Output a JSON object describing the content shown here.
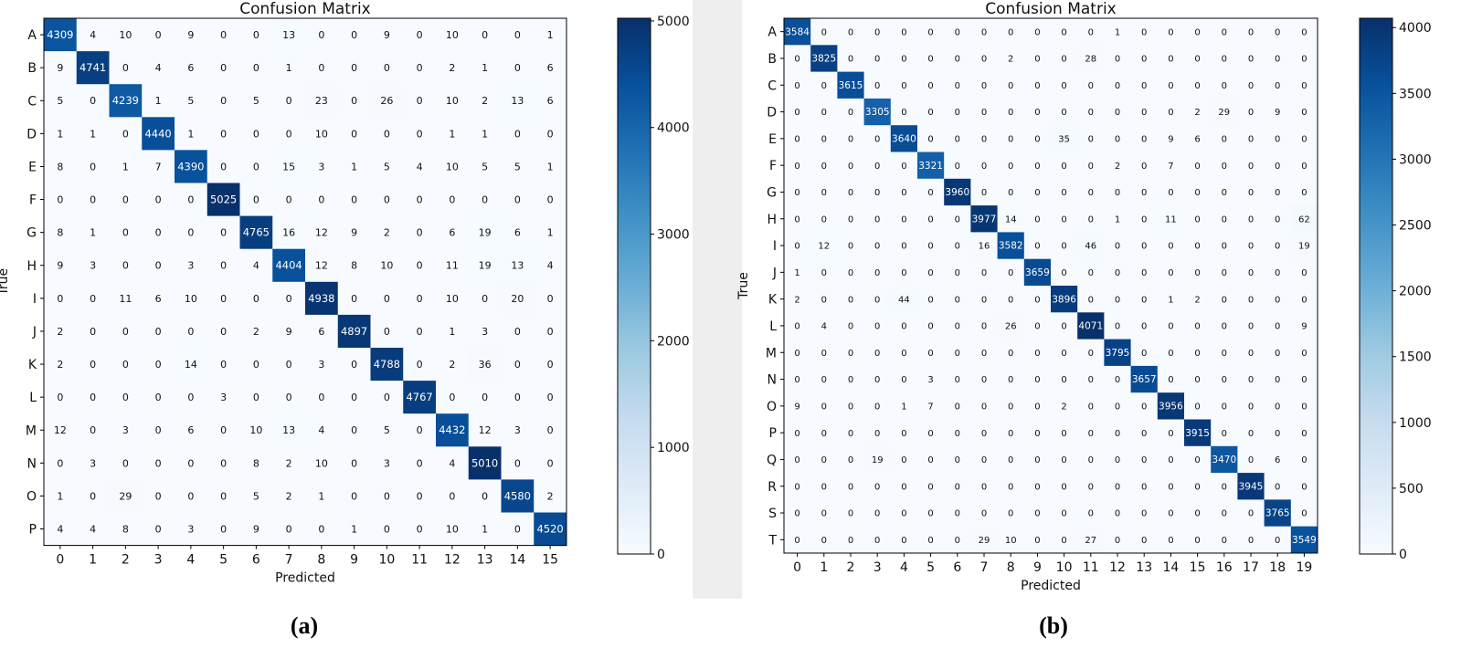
{
  "colors": {
    "cmap_low": "#f7fbff",
    "cmap_high": "#08306b",
    "text_dark": "#111111",
    "text_light": "#ffffff"
  },
  "chart_data": [
    {
      "type": "heatmap",
      "panel_label": "(a)",
      "title": "Confusion Matrix",
      "xlabel": "Predicted",
      "ylabel": "True",
      "x_ticks": [
        "0",
        "1",
        "2",
        "3",
        "4",
        "5",
        "6",
        "7",
        "8",
        "9",
        "10",
        "11",
        "12",
        "13",
        "14",
        "15"
      ],
      "y_ticks": [
        "A",
        "B",
        "C",
        "D",
        "E",
        "F",
        "G",
        "H",
        "I",
        "J",
        "K",
        "L",
        "M",
        "N",
        "O",
        "P"
      ],
      "colorbar": {
        "range": [
          0,
          5025
        ],
        "ticks": [
          0,
          1000,
          2000,
          3000,
          4000,
          5000
        ]
      },
      "values": [
        [
          4309,
          4,
          10,
          0,
          9,
          0,
          0,
          13,
          0,
          0,
          9,
          0,
          10,
          0,
          0,
          1
        ],
        [
          9,
          4741,
          0,
          4,
          6,
          0,
          0,
          1,
          0,
          0,
          0,
          0,
          2,
          1,
          0,
          6
        ],
        [
          5,
          0,
          4239,
          1,
          5,
          0,
          5,
          0,
          23,
          0,
          26,
          0,
          10,
          2,
          13,
          6
        ],
        [
          1,
          1,
          0,
          4440,
          1,
          0,
          0,
          0,
          10,
          0,
          0,
          0,
          1,
          1,
          0,
          0
        ],
        [
          8,
          0,
          1,
          7,
          4390,
          0,
          0,
          15,
          3,
          1,
          5,
          4,
          10,
          5,
          5,
          1
        ],
        [
          0,
          0,
          0,
          0,
          0,
          5025,
          0,
          0,
          0,
          0,
          0,
          0,
          0,
          0,
          0,
          0
        ],
        [
          8,
          1,
          0,
          0,
          0,
          0,
          4765,
          16,
          12,
          9,
          2,
          0,
          6,
          19,
          6,
          1
        ],
        [
          9,
          3,
          0,
          0,
          3,
          0,
          4,
          4404,
          12,
          8,
          10,
          0,
          11,
          19,
          13,
          4
        ],
        [
          0,
          0,
          11,
          6,
          10,
          0,
          0,
          0,
          4938,
          0,
          0,
          0,
          10,
          0,
          20,
          0
        ],
        [
          2,
          0,
          0,
          0,
          0,
          0,
          2,
          9,
          6,
          4897,
          0,
          0,
          1,
          3,
          0,
          0
        ],
        [
          2,
          0,
          0,
          0,
          14,
          0,
          0,
          0,
          3,
          0,
          4788,
          0,
          2,
          36,
          0,
          0
        ],
        [
          0,
          0,
          0,
          0,
          0,
          3,
          0,
          0,
          0,
          0,
          0,
          4767,
          0,
          0,
          0,
          0
        ],
        [
          12,
          0,
          3,
          0,
          6,
          0,
          10,
          13,
          4,
          0,
          5,
          0,
          4432,
          12,
          3,
          0
        ],
        [
          0,
          3,
          0,
          0,
          0,
          0,
          8,
          2,
          10,
          0,
          3,
          0,
          4,
          5010,
          0,
          0
        ],
        [
          1,
          0,
          29,
          0,
          0,
          0,
          5,
          2,
          1,
          0,
          0,
          0,
          0,
          0,
          4580,
          2
        ],
        [
          4,
          4,
          8,
          0,
          3,
          0,
          9,
          0,
          0,
          1,
          0,
          0,
          10,
          1,
          0,
          4520
        ]
      ]
    },
    {
      "type": "heatmap",
      "panel_label": "(b)",
      "title": "Confusion Matrix",
      "xlabel": "Predicted",
      "ylabel": "True",
      "x_ticks": [
        "0",
        "1",
        "2",
        "3",
        "4",
        "5",
        "6",
        "7",
        "8",
        "9",
        "10",
        "11",
        "12",
        "13",
        "14",
        "15",
        "16",
        "17",
        "18",
        "19"
      ],
      "y_ticks": [
        "A",
        "B",
        "C",
        "D",
        "E",
        "F",
        "G",
        "H",
        "I",
        "J",
        "K",
        "L",
        "M",
        "N",
        "O",
        "P",
        "Q",
        "R",
        "S",
        "T"
      ],
      "colorbar": {
        "range": [
          0,
          4071
        ],
        "ticks": [
          0,
          500,
          1000,
          1500,
          2000,
          2500,
          3000,
          3500,
          4000
        ]
      },
      "values": [
        [
          3584,
          0,
          0,
          0,
          0,
          0,
          0,
          0,
          0,
          0,
          0,
          0,
          1,
          0,
          0,
          0,
          0,
          0,
          0,
          0
        ],
        [
          0,
          3825,
          0,
          0,
          0,
          0,
          0,
          0,
          2,
          0,
          0,
          28,
          0,
          0,
          0,
          0,
          0,
          0,
          0,
          0
        ],
        [
          0,
          0,
          3615,
          0,
          0,
          0,
          0,
          0,
          0,
          0,
          0,
          0,
          0,
          0,
          0,
          0,
          0,
          0,
          0,
          0
        ],
        [
          0,
          0,
          0,
          3305,
          0,
          0,
          0,
          0,
          0,
          0,
          0,
          0,
          0,
          0,
          0,
          2,
          29,
          0,
          9,
          0
        ],
        [
          0,
          0,
          0,
          0,
          3640,
          0,
          0,
          0,
          0,
          0,
          35,
          0,
          0,
          0,
          9,
          6,
          0,
          0,
          0,
          0
        ],
        [
          0,
          0,
          0,
          0,
          0,
          3321,
          0,
          0,
          0,
          0,
          0,
          0,
          2,
          0,
          7,
          0,
          0,
          0,
          0,
          0
        ],
        [
          0,
          0,
          0,
          0,
          0,
          0,
          3960,
          0,
          0,
          0,
          0,
          0,
          0,
          0,
          0,
          0,
          0,
          0,
          0,
          0
        ],
        [
          0,
          0,
          0,
          0,
          0,
          0,
          0,
          3977,
          14,
          0,
          0,
          0,
          1,
          0,
          11,
          0,
          0,
          0,
          0,
          62
        ],
        [
          0,
          12,
          0,
          0,
          0,
          0,
          0,
          16,
          3582,
          0,
          0,
          46,
          0,
          0,
          0,
          0,
          0,
          0,
          0,
          19
        ],
        [
          1,
          0,
          0,
          0,
          0,
          0,
          0,
          0,
          0,
          3659,
          0,
          0,
          0,
          0,
          0,
          0,
          0,
          0,
          0,
          0
        ],
        [
          2,
          0,
          0,
          0,
          44,
          0,
          0,
          0,
          0,
          0,
          3896,
          0,
          0,
          0,
          1,
          2,
          0,
          0,
          0,
          0
        ],
        [
          0,
          4,
          0,
          0,
          0,
          0,
          0,
          0,
          26,
          0,
          0,
          4071,
          0,
          0,
          0,
          0,
          0,
          0,
          0,
          9
        ],
        [
          0,
          0,
          0,
          0,
          0,
          0,
          0,
          0,
          0,
          0,
          0,
          0,
          3795,
          0,
          0,
          0,
          0,
          0,
          0,
          0
        ],
        [
          0,
          0,
          0,
          0,
          0,
          3,
          0,
          0,
          0,
          0,
          0,
          0,
          0,
          3657,
          0,
          0,
          0,
          0,
          0,
          0
        ],
        [
          9,
          0,
          0,
          0,
          1,
          7,
          0,
          0,
          0,
          0,
          2,
          0,
          0,
          0,
          3956,
          0,
          0,
          0,
          0,
          0
        ],
        [
          0,
          0,
          0,
          0,
          0,
          0,
          0,
          0,
          0,
          0,
          0,
          0,
          0,
          0,
          0,
          3915,
          0,
          0,
          0,
          0
        ],
        [
          0,
          0,
          0,
          19,
          0,
          0,
          0,
          0,
          0,
          0,
          0,
          0,
          0,
          0,
          0,
          0,
          3470,
          0,
          6,
          0
        ],
        [
          0,
          0,
          0,
          0,
          0,
          0,
          0,
          0,
          0,
          0,
          0,
          0,
          0,
          0,
          0,
          0,
          0,
          3945,
          0,
          0
        ],
        [
          0,
          0,
          0,
          0,
          0,
          0,
          0,
          0,
          0,
          0,
          0,
          0,
          0,
          0,
          0,
          0,
          0,
          0,
          3765,
          0
        ],
        [
          0,
          0,
          0,
          0,
          0,
          0,
          0,
          29,
          10,
          0,
          0,
          27,
          0,
          0,
          0,
          0,
          0,
          0,
          0,
          3549
        ]
      ]
    }
  ]
}
